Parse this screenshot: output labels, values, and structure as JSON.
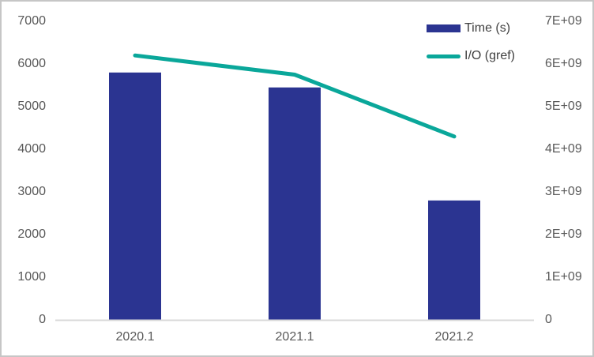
{
  "chart_data": {
    "type": "combo",
    "title": "",
    "categories": [
      "2020.1",
      "2021.1",
      "2021.2"
    ],
    "series": [
      {
        "name": "Time (s)",
        "type": "bar",
        "axis": "left",
        "values": [
          5800,
          5450,
          2800
        ],
        "color": "#2B3491"
      },
      {
        "name": "I/O (gref)",
        "type": "line",
        "axis": "right",
        "values": [
          6200000000,
          5750000000,
          4300000000
        ],
        "color": "#0AA79A"
      }
    ],
    "left_axis": {
      "min": 0,
      "max": 7000,
      "tick_labels": [
        "0",
        "1000",
        "2000",
        "3000",
        "4000",
        "5000",
        "6000",
        "7000"
      ]
    },
    "right_axis": {
      "min": 0,
      "max": 7000000000,
      "tick_labels": [
        "0",
        "1E+09",
        "2E+09",
        "3E+09",
        "4E+09",
        "5E+09",
        "6E+09",
        "7E+09"
      ]
    },
    "legend_position": "top-right",
    "gridlines": false,
    "axis_line_color": "#D9D9D9",
    "text_color": "#595959"
  }
}
